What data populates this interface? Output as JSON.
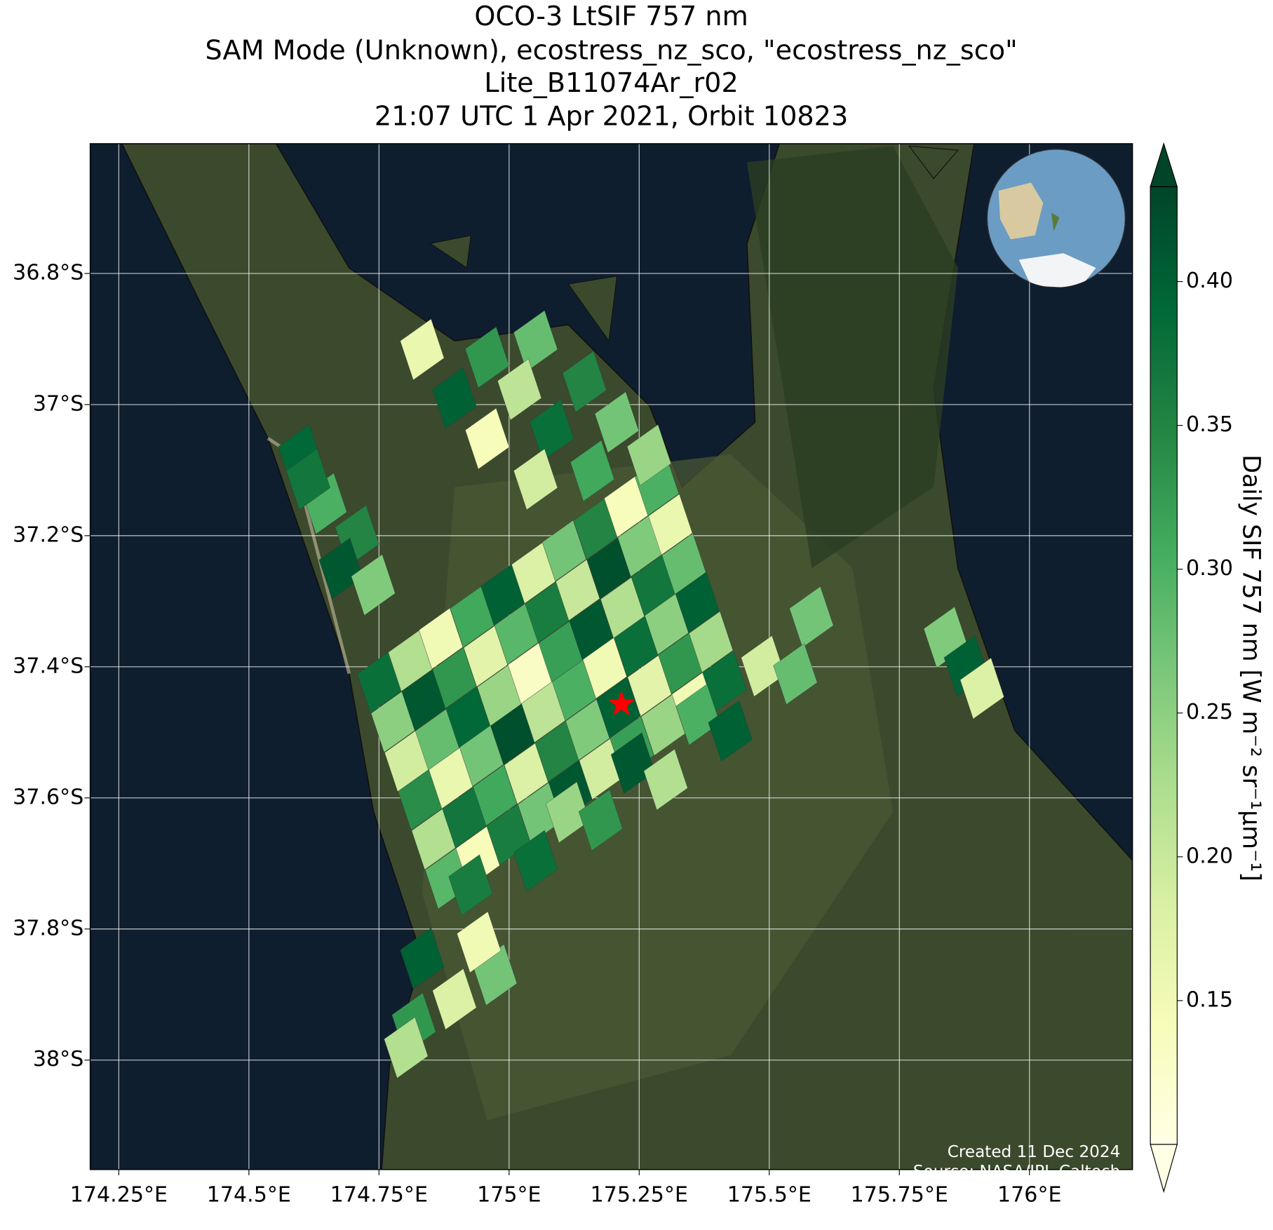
{
  "chart_data": {
    "type": "map",
    "title_lines": [
      "OCO-3 LtSIF 757 nm",
      "SAM Mode (Unknown), ecostress_nz_sco, \"ecostress_nz_sco\"",
      "Lite_B11074Ar_r02",
      "21:07 UTC 1 Apr 2021, Orbit 10823"
    ],
    "xlim": [
      174.195,
      176.198
    ],
    "ylim": [
      -38.167,
      -36.602
    ],
    "xticks": [
      {
        "value": 174.25,
        "label": "174.25°E"
      },
      {
        "value": 174.5,
        "label": "174.5°E"
      },
      {
        "value": 174.75,
        "label": "174.75°E"
      },
      {
        "value": 175,
        "label": "175°E"
      },
      {
        "value": 175.25,
        "label": "175.25°E"
      },
      {
        "value": 175.5,
        "label": "175.5°E"
      },
      {
        "value": 175.75,
        "label": "175.75°E"
      },
      {
        "value": 176,
        "label": "176°E"
      }
    ],
    "yticks": [
      {
        "value": -36.8,
        "label": "36.8°S"
      },
      {
        "value": -37,
        "label": "37°S"
      },
      {
        "value": -37.2,
        "label": "37.2°S"
      },
      {
        "value": -37.4,
        "label": "37.4°S"
      },
      {
        "value": -37.6,
        "label": "37.6°S"
      },
      {
        "value": -37.8,
        "label": "37.8°S"
      },
      {
        "value": -38,
        "label": "38°S"
      }
    ],
    "grid": true,
    "site": {
      "lon": 175.216,
      "lat": -37.457
    },
    "cells": {
      "lon": [
        174.751,
        174.81,
        174.869,
        174.929,
        174.988,
        175.047,
        175.106,
        175.166,
        175.225,
        175.284,
        174.777,
        174.836,
        174.895,
        174.955,
        175.014,
        175.073,
        175.132,
        175.192,
        175.251,
        175.31,
        174.803,
        174.862,
        174.921,
        174.981,
        175.04,
        175.099,
        175.158,
        175.218,
        175.277,
        175.336,
        174.829,
        174.888,
        174.947,
        175.007,
        175.066,
        175.125,
        175.184,
        175.244,
        175.303,
        175.362,
        174.855,
        174.914,
        174.973,
        175.033,
        175.092,
        175.151,
        175.21,
        175.27,
        175.329,
        175.388,
        174.881,
        174.94,
        174.999,
        175.059,
        175.118,
        175.177,
        175.236,
        175.296,
        175.355,
        175.414,
        174.833,
        174.958,
        175.051,
        174.895,
        175.02,
        175.145,
        174.958,
        175.082,
        175.207,
        175.16,
        175.051,
        175.269,
        174.599,
        174.646,
        174.708,
        174.677,
        174.739,
        174.614,
        174.817,
        174.895,
        174.973,
        174.833,
        174.802,
        174.942,
        174.926,
        175.113,
        175.238,
        175.363,
        175.488,
        175.581,
        175.051,
        175.176,
        175.301,
        175.425,
        175.55,
        175.839,
        175.878,
        175.909
      ],
      "lat": [
        -37.424,
        -37.391,
        -37.357,
        -37.324,
        -37.29,
        -37.257,
        -37.223,
        -37.19,
        -37.156,
        -37.123,
        -37.484,
        -37.451,
        -37.417,
        -37.384,
        -37.35,
        -37.317,
        -37.283,
        -37.25,
        -37.216,
        -37.183,
        -37.544,
        -37.511,
        -37.477,
        -37.444,
        -37.41,
        -37.377,
        -37.343,
        -37.31,
        -37.276,
        -37.243,
        -37.603,
        -37.57,
        -37.536,
        -37.503,
        -37.469,
        -37.436,
        -37.402,
        -37.369,
        -37.335,
        -37.302,
        -37.663,
        -37.63,
        -37.596,
        -37.563,
        -37.529,
        -37.496,
        -37.462,
        -37.429,
        -37.395,
        -37.362,
        -37.723,
        -37.69,
        -37.656,
        -37.623,
        -37.589,
        -37.556,
        -37.522,
        -37.489,
        -37.455,
        -37.422,
        -36.916,
        -36.928,
        -36.903,
        -36.99,
        -36.977,
        -36.965,
        -37.052,
        -37.039,
        -37.027,
        -37.101,
        -37.114,
        -37.077,
        -37.077,
        -37.151,
        -37.2,
        -37.25,
        -37.275,
        -37.114,
        -37.944,
        -37.907,
        -37.87,
        -37.845,
        -37.981,
        -37.82,
        -37.733,
        -37.622,
        -37.547,
        -37.473,
        -37.399,
        -37.324,
        -37.696,
        -37.634,
        -37.572,
        -37.498,
        -37.411,
        -37.355,
        -37.399,
        -37.433
      ],
      "values": [
        0.38,
        0.22,
        0.15,
        0.31,
        0.4,
        0.18,
        0.27,
        0.35,
        0.14,
        0.3,
        0.25,
        0.41,
        0.33,
        0.17,
        0.29,
        0.36,
        0.2,
        0.42,
        0.26,
        0.16,
        0.19,
        0.28,
        0.39,
        0.24,
        0.13,
        0.32,
        0.41,
        0.22,
        0.37,
        0.28,
        0.34,
        0.16,
        0.27,
        0.42,
        0.21,
        0.3,
        0.15,
        0.38,
        0.25,
        0.4,
        0.22,
        0.37,
        0.31,
        0.18,
        0.35,
        0.26,
        0.4,
        0.17,
        0.33,
        0.23,
        0.29,
        0.14,
        0.36,
        0.27,
        0.41,
        0.19,
        0.32,
        0.24,
        0.15,
        0.38,
        0.16,
        0.33,
        0.28,
        0.4,
        0.21,
        0.35,
        0.14,
        0.38,
        0.27,
        0.31,
        0.19,
        0.24,
        0.39,
        0.3,
        0.35,
        0.41,
        0.26,
        0.37,
        0.33,
        0.18,
        0.27,
        0.4,
        0.22,
        0.15,
        0.36,
        0.24,
        0.41,
        0.3,
        0.19,
        0.27,
        0.38,
        0.33,
        0.22,
        0.4,
        0.28,
        0.26,
        0.4,
        0.18
      ]
    },
    "colorbar": {
      "label": "Daily SIF 757 nm [W m⁻² sr⁻¹μm⁻¹]",
      "colormap": "YlGn",
      "extend": "both",
      "clim": [
        0.1,
        0.433
      ],
      "ticks": [
        {
          "value": 0.15,
          "label": "0.15"
        },
        {
          "value": 0.2,
          "label": "0.20"
        },
        {
          "value": 0.25,
          "label": "0.25"
        },
        {
          "value": 0.3,
          "label": "0.30"
        },
        {
          "value": 0.35,
          "label": "0.35"
        },
        {
          "value": 0.4,
          "label": "0.40"
        }
      ]
    },
    "credits": [
      "Created 11 Dec 2024",
      "Source: NASA/JPL-Caltech"
    ]
  }
}
